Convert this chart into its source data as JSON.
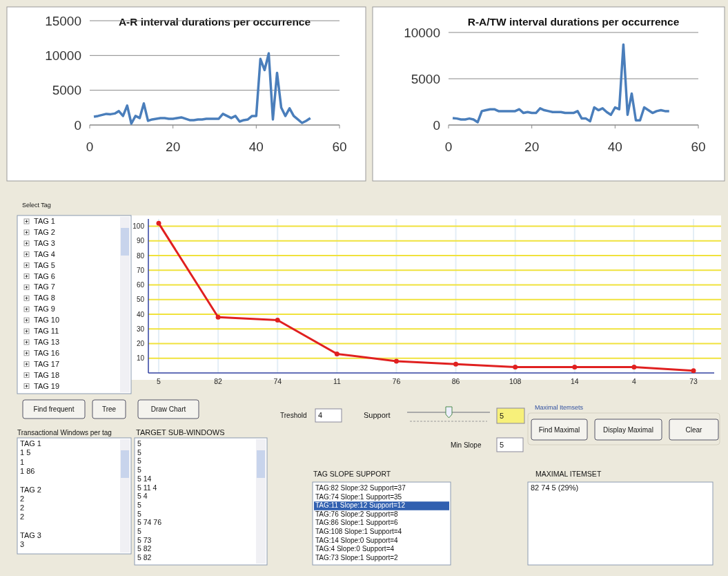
{
  "chart_data": [
    {
      "type": "line",
      "title": "A-R interval durations per occurrence",
      "x": [
        1,
        2,
        3,
        4,
        5,
        6,
        7,
        8,
        9,
        10,
        11,
        12,
        13,
        14,
        15,
        16,
        17,
        18,
        19,
        20,
        21,
        22,
        23,
        24,
        25,
        26,
        27,
        28,
        29,
        30,
        31,
        32,
        33,
        34,
        35,
        36,
        37,
        38,
        39,
        40,
        41,
        42,
        43,
        44,
        45,
        46,
        47,
        48,
        49,
        50,
        51,
        52,
        53
      ],
      "values": [
        1200,
        1300,
        1450,
        1600,
        1550,
        1650,
        2000,
        1300,
        2800,
        200,
        1300,
        1000,
        3100,
        600,
        800,
        900,
        1000,
        1000,
        900,
        900,
        1000,
        1100,
        900,
        700,
        700,
        800,
        800,
        900,
        900,
        900,
        900,
        1600,
        1300,
        1000,
        1300,
        500,
        700,
        800,
        1300,
        1300,
        9500,
        7900,
        10300,
        800,
        7500,
        2500,
        1300,
        2400,
        1300,
        800,
        300,
        600,
        1000
      ],
      "color": "#4a7ebb",
      "xlim": [
        0,
        60
      ],
      "xticks": [
        0,
        20,
        40,
        60
      ],
      "ylim": [
        0,
        15000
      ],
      "yticks": [
        0,
        5000,
        10000,
        15000
      ],
      "grid": "y"
    },
    {
      "type": "line",
      "title": "R-A/TW interval durations per occurrence",
      "x": [
        1,
        2,
        3,
        4,
        5,
        6,
        7,
        8,
        9,
        10,
        11,
        12,
        13,
        14,
        15,
        16,
        17,
        18,
        19,
        20,
        21,
        22,
        23,
        24,
        25,
        26,
        27,
        28,
        29,
        30,
        31,
        32,
        33,
        34,
        35,
        36,
        37,
        38,
        39,
        40,
        41,
        42,
        43,
        44,
        45,
        46,
        47,
        48,
        49,
        50,
        51,
        52,
        53
      ],
      "values": [
        750,
        700,
        600,
        600,
        700,
        600,
        300,
        1500,
        1600,
        1700,
        1700,
        1500,
        1500,
        1500,
        1500,
        1500,
        1700,
        1300,
        1400,
        1300,
        1300,
        1800,
        1600,
        1500,
        1400,
        1400,
        1400,
        1300,
        1300,
        1300,
        1500,
        700,
        700,
        400,
        1900,
        1600,
        1800,
        1400,
        1100,
        1900,
        1700,
        8700,
        1100,
        3400,
        500,
        500,
        1900,
        1600,
        1300,
        1500,
        1600,
        1500,
        1500
      ],
      "color": "#4a7ebb",
      "xlim": [
        0,
        60
      ],
      "xticks": [
        0,
        20,
        40,
        60
      ],
      "ylim": [
        0,
        10000
      ],
      "yticks": [
        0,
        5000,
        10000
      ],
      "grid": "y"
    },
    {
      "type": "line",
      "categories": [
        "5",
        "82",
        "74",
        "11",
        "76",
        "86",
        "108",
        "14",
        "4",
        "73"
      ],
      "values": [
        102,
        38,
        36,
        13,
        8,
        6,
        4,
        4,
        4,
        1.5
      ],
      "color": "#e02020",
      "ylim": [
        0,
        105
      ],
      "yticks": [
        10,
        20,
        30,
        40,
        50,
        60,
        70,
        80,
        90,
        100
      ],
      "grid": true,
      "marker": "circle"
    },
    {
      "type": "other",
      "annotations": [
        "Select Tag",
        "TAG 1\nTAG 2\nTAG 3\nTAG 4\nTAG 5\nTAG 6\nTAG 7\nTAG 8\nTAG 9\nTAG 10\nTAG 11\nTAG 13\nTAG 16\nTAG 17\nTAG 18\nTAG 19",
        "Find frequent",
        "Tree",
        "Draw Chart",
        "Transactional Windows per tag",
        "TAG 1\n1 5\n1\n1 86\n\nTAG 2\n2\n2\n2\n\nTAG 3\n3",
        "TARGET SUB-WINDOWS",
        "5\n5\n5\n5\n5 14\n5 11 4\n5 4\n5\n5\n5 74 76\n5\n5 73\n5 82\n5 82",
        "Treshold",
        "4",
        "Support",
        "5",
        "Min Slope",
        "5",
        "Maximal Itemsets",
        "Find Maximal",
        "Display Maximal",
        "Clear",
        "TAG  SLOPE  SUPPORT",
        "TAG:82 Slope:32 Support=37\nTAG:74 Slope:1 Support=35\nTAG:11 Slope:12 Support=12\nTAG:76 Slope:2 Support=8\nTAG:86 Slope:1 Support=6\nTAG:108 Slope:1 Support=4\nTAG:14 Slope:0 Support=4\nTAG:4 Slope:0 Support=4\nTAG:73 Slope:1 Support=2",
        "MAXIMAL ITEMSET",
        "82 74 5  (29%)"
      ]
    }
  ]
}
